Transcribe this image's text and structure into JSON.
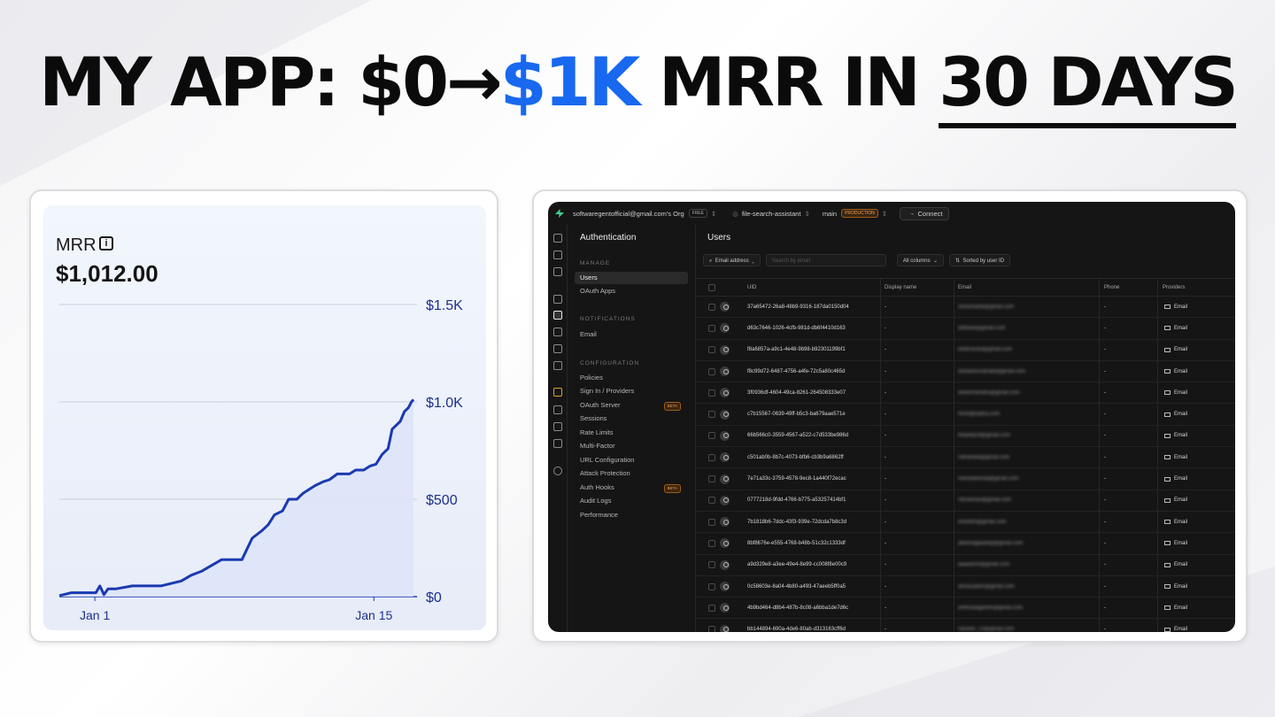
{
  "headline": {
    "prefix": "MY APP: $0→",
    "accent": "$1K",
    "middle": " MRR IN ",
    "underlined": "30 DAYS"
  },
  "mrr_card": {
    "label": "MRR",
    "info_glyph": "i",
    "value": "$1,012.00"
  },
  "chart_data": {
    "type": "area",
    "title": "MRR",
    "x_ticks": [
      "Jan 1",
      "Jan 15"
    ],
    "y_ticks": [
      "$0",
      "$500",
      "$1.0K",
      "$1.5K"
    ],
    "ylim": [
      0,
      1500
    ],
    "grid": true,
    "color": "#1a3ab0",
    "fill": "#dfe4f8",
    "x": [
      0,
      0.6,
      1.8,
      2.0,
      2.2,
      2.4,
      2.8,
      3.6,
      4,
      5,
      6,
      6.5,
      7,
      7.5,
      8,
      8.5,
      9,
      9.5,
      10,
      10.3,
      10.6,
      11,
      11.3,
      11.7,
      12,
      12.3,
      12.6,
      13,
      13.3,
      13.7,
      14,
      14.3,
      14.6,
      15,
      15.3,
      15.6,
      15.9,
      16.2,
      16.4,
      16.6,
      16.8,
      17.0,
      17.1,
      17.2,
      17.35,
      17.45
    ],
    "values": [
      5,
      20,
      20,
      55,
      10,
      40,
      40,
      55,
      55,
      55,
      80,
      110,
      130,
      160,
      190,
      190,
      190,
      300,
      340,
      370,
      420,
      440,
      500,
      500,
      530,
      550,
      570,
      590,
      600,
      630,
      630,
      630,
      650,
      650,
      670,
      680,
      730,
      760,
      860,
      880,
      900,
      950,
      960,
      970,
      1000,
      1012
    ]
  },
  "dashboard": {
    "topbar": {
      "org": "softwaregentofficial@gmail.com's Org",
      "org_badge": "FREE",
      "project": "file-search-assistant",
      "branch": "main",
      "branch_badge": "PRODUCTION",
      "connect": "Connect"
    },
    "sidebar": {
      "title": "Authentication",
      "sections": [
        {
          "heading": "MANAGE",
          "items": [
            {
              "label": "Users",
              "active": true
            },
            {
              "label": "OAuth Apps"
            }
          ]
        },
        {
          "heading": "NOTIFICATIONS",
          "items": [
            {
              "label": "Email"
            }
          ]
        },
        {
          "heading": "CONFIGURATION",
          "items": [
            {
              "label": "Policies"
            },
            {
              "label": "Sign In / Providers"
            },
            {
              "label": "OAuth Server",
              "badge": "BETA"
            },
            {
              "label": "Sessions"
            },
            {
              "label": "Rate Limits"
            },
            {
              "label": "Multi-Factor"
            },
            {
              "label": "URL Configuration"
            },
            {
              "label": "Attack Protection"
            },
            {
              "label": "Auth Hooks",
              "badge": "BETA"
            },
            {
              "label": "Audit Logs"
            },
            {
              "label": "Performance"
            }
          ]
        }
      ]
    },
    "main": {
      "title": "Users",
      "filter": {
        "field": "Email address",
        "search_placeholder": "Search by email",
        "columns": "All columns",
        "sort": "Sorted by user ID"
      },
      "columns": [
        "UID",
        "Display name",
        "Email",
        "Phone",
        "Providers"
      ],
      "rows": [
        {
          "uid": "37a65472-26a8-48b9-9316-187da0150d04",
          "display": "-",
          "email": "shirankarte@gmail.com",
          "phone": "-",
          "provider": "Email"
        },
        {
          "uid": "d63c7646-1026-4cfb-981d-db6f4410d163",
          "display": "-",
          "email": "artbook@gmail.com",
          "phone": "-",
          "provider": "Email"
        },
        {
          "uid": "f8a6857a-a9c1-4e48-9b98-b92301199bf1",
          "display": "-",
          "email": "keiteraceo@gmail.com",
          "phone": "-",
          "provider": "Email"
        },
        {
          "uid": "f8c99d72-6487-4756-a4fe-72c5a80c465d",
          "display": "-",
          "email": "dohanesmahadi@gmail.com",
          "phone": "-",
          "provider": "Email"
        },
        {
          "uid": "3f0936df-4604-49ca-8261-264508333e07",
          "display": "-",
          "email": "anieemanahs@gmail.com",
          "phone": "-",
          "provider": "Email"
        },
        {
          "uid": "c7b15567-0639-49ff-b5c3-ba679aae571e",
          "display": "-",
          "email": "fhi04@kabra.com",
          "phone": "-",
          "provider": "Email"
        },
        {
          "uid": "66b566c0-3559-4567-a522-c7d533be986d",
          "display": "-",
          "email": "fkepekj04@gmail.com",
          "phone": "-",
          "provider": "Email"
        },
        {
          "uid": "c501ab0b-8b7c-4073-bfb6-cb3b9a6862ff",
          "display": "-",
          "email": "nahaneib@gmail.com",
          "phone": "-",
          "provider": "Email"
        },
        {
          "uid": "7e71a33c-3759-4578-9ec8-1a440f72ecac",
          "display": "-",
          "email": "manaabanaa@gmail.com",
          "phone": "-",
          "provider": "Email"
        },
        {
          "uid": "0777218d-9fdd-4766-b775-a53257414bf1",
          "display": "-",
          "email": "mkrahnan@gmail.com",
          "phone": "-",
          "provider": "Email"
        },
        {
          "uid": "7b1818b6-7ddc-43f3-939e-72dcda7b8c3d",
          "display": "-",
          "email": "enlolam@gmail.com",
          "phone": "-",
          "provider": "Email"
        },
        {
          "uid": "8bf8676e-e555-4768-b48b-51c32c1333df",
          "display": "-",
          "email": "alkemagaaway@gmail.com",
          "phone": "-",
          "provider": "Email"
        },
        {
          "uid": "a9d329e8-a3ee-49e4-8e99-cc008f8e00c9",
          "display": "-",
          "email": "aaaaarsh@gmail.com",
          "phone": "-",
          "provider": "Email"
        },
        {
          "uid": "0c58603e-8a04-4b80-a493-47aeeb5ff0a5",
          "display": "-",
          "email": "absaraabor@gmail.com",
          "phone": "-",
          "provider": "Email"
        },
        {
          "uid": "4b9bd464-d8b4-487b-8c08-a6bba1de7d6c",
          "display": "-",
          "email": "anthoaaigamm@gmail.com",
          "phone": "-",
          "provider": "Email"
        },
        {
          "uid": "bb144894-690a-4de6-80ab-d313163cff6d",
          "display": "-",
          "email": "nandari_13@gmail.com",
          "phone": "-",
          "provider": "Email"
        }
      ]
    }
  }
}
